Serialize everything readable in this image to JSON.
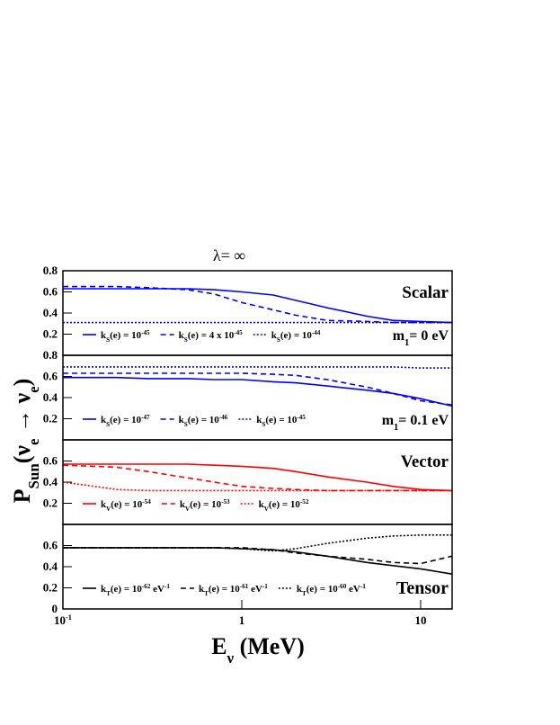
{
  "chart_data": [
    {
      "type": "line",
      "title": "λ= ∞",
      "ylabel": "PSun(νe → νe)",
      "xscale": "log",
      "x": [
        0.1,
        0.15,
        0.2,
        0.3,
        0.5,
        0.7,
        1,
        1.5,
        2,
        3,
        5,
        7,
        10,
        15
      ],
      "xlim": [
        0.1,
        15
      ],
      "ylim": [
        0,
        0.8
      ],
      "yticks": [
        0.2,
        0.4,
        0.6,
        0.8
      ],
      "label": "Scalar",
      "label_color": "#0000ff",
      "note": "m1= 0 eV",
      "series": [
        {
          "name": "kS(e) = 10-45",
          "color": "#0000ff",
          "dash": "solid",
          "values": [
            0.63,
            0.63,
            0.63,
            0.63,
            0.63,
            0.62,
            0.6,
            0.57,
            0.52,
            0.45,
            0.37,
            0.33,
            0.32,
            0.31
          ]
        },
        {
          "name": "kS(e) = 4 x 10-45",
          "color": "#0000ff",
          "dash": "dashed",
          "values": [
            0.65,
            0.65,
            0.65,
            0.64,
            0.62,
            0.58,
            0.5,
            0.43,
            0.38,
            0.33,
            0.32,
            0.31,
            0.31,
            0.31
          ]
        },
        {
          "name": "kS(e) = 10-44",
          "color": "#0000ff",
          "dash": "dotted",
          "values": [
            0.31,
            0.31,
            0.31,
            0.31,
            0.31,
            0.31,
            0.31,
            0.31,
            0.31,
            0.31,
            0.31,
            0.31,
            0.31,
            0.31
          ]
        }
      ]
    },
    {
      "type": "line",
      "xscale": "log",
      "x": [
        0.1,
        0.15,
        0.2,
        0.3,
        0.5,
        0.7,
        1,
        1.5,
        2,
        3,
        5,
        7,
        10,
        15
      ],
      "xlim": [
        0.1,
        15
      ],
      "ylim": [
        0,
        0.8
      ],
      "yticks": [
        0.2,
        0.4,
        0.6,
        0.8
      ],
      "note": "m1= 0.1 eV",
      "series": [
        {
          "name": "kS(e) = 10-47",
          "color": "#0000ff",
          "dash": "solid",
          "values": [
            0.59,
            0.59,
            0.59,
            0.58,
            0.58,
            0.57,
            0.57,
            0.55,
            0.54,
            0.51,
            0.47,
            0.44,
            0.39,
            0.32
          ]
        },
        {
          "name": "kS(e) = 10-46",
          "color": "#0000ff",
          "dash": "dashed",
          "values": [
            0.63,
            0.63,
            0.63,
            0.63,
            0.63,
            0.63,
            0.63,
            0.62,
            0.61,
            0.57,
            0.5,
            0.44,
            0.37,
            0.33
          ]
        },
        {
          "name": "kS(e) = 10-45",
          "color": "#0000ff",
          "dash": "dotted",
          "values": [
            0.69,
            0.69,
            0.69,
            0.69,
            0.69,
            0.69,
            0.69,
            0.69,
            0.69,
            0.69,
            0.69,
            0.69,
            0.68,
            0.68
          ]
        }
      ]
    },
    {
      "type": "line",
      "xscale": "log",
      "x": [
        0.1,
        0.15,
        0.2,
        0.3,
        0.5,
        0.7,
        1,
        1.5,
        2,
        3,
        5,
        7,
        10,
        15
      ],
      "xlim": [
        0.1,
        15
      ],
      "ylim": [
        0,
        0.8
      ],
      "yticks": [
        0.2,
        0.4,
        0.6
      ],
      "label": "Vector",
      "label_color": "#ff0000",
      "series": [
        {
          "name": "kV(e) = 10-54",
          "color": "#ff0000",
          "dash": "solid",
          "values": [
            0.57,
            0.57,
            0.57,
            0.57,
            0.57,
            0.56,
            0.55,
            0.53,
            0.5,
            0.45,
            0.4,
            0.36,
            0.33,
            0.32
          ]
        },
        {
          "name": "kV(e) = 10-53",
          "color": "#ff0000",
          "dash": "dashed",
          "values": [
            0.56,
            0.55,
            0.54,
            0.5,
            0.44,
            0.4,
            0.36,
            0.34,
            0.33,
            0.32,
            0.32,
            0.32,
            0.32,
            0.32
          ]
        },
        {
          "name": "kV(e) = 10-52",
          "color": "#ff0000",
          "dash": "dotted",
          "values": [
            0.4,
            0.36,
            0.33,
            0.32,
            0.32,
            0.32,
            0.32,
            0.32,
            0.32,
            0.32,
            0.32,
            0.32,
            0.32,
            0.32
          ]
        }
      ]
    },
    {
      "type": "line",
      "xscale": "log",
      "xlabel": "Eν (MeV)",
      "x": [
        0.1,
        0.15,
        0.2,
        0.3,
        0.5,
        0.7,
        1,
        1.5,
        2,
        3,
        5,
        7,
        10,
        15
      ],
      "xlim": [
        0.1,
        15
      ],
      "ylim": [
        0,
        0.8
      ],
      "yticks": [
        0,
        0.2,
        0.4,
        0.6
      ],
      "xticks": [
        {
          "value": 0.1,
          "label": "10-1"
        },
        1,
        10
      ],
      "note": "Tensor",
      "series": [
        {
          "name": "kT(e) = 10-62 eV-1",
          "color": "#000000",
          "dash": "solid",
          "values": [
            0.58,
            0.58,
            0.58,
            0.58,
            0.58,
            0.58,
            0.57,
            0.56,
            0.54,
            0.5,
            0.44,
            0.41,
            0.38,
            0.33
          ]
        },
        {
          "name": "kT(e) = 10-61 eV-1",
          "color": "#000000",
          "dash": "dashed",
          "values": [
            0.58,
            0.58,
            0.58,
            0.58,
            0.58,
            0.58,
            0.58,
            0.56,
            0.53,
            0.5,
            0.47,
            0.44,
            0.43,
            0.5
          ]
        },
        {
          "name": "kT(e) = 10-60 eV-1",
          "color": "#000000",
          "dash": "dotted",
          "values": [
            0.58,
            0.58,
            0.58,
            0.58,
            0.58,
            0.58,
            0.57,
            0.55,
            0.57,
            0.62,
            0.67,
            0.69,
            0.7,
            0.7
          ]
        }
      ]
    }
  ]
}
